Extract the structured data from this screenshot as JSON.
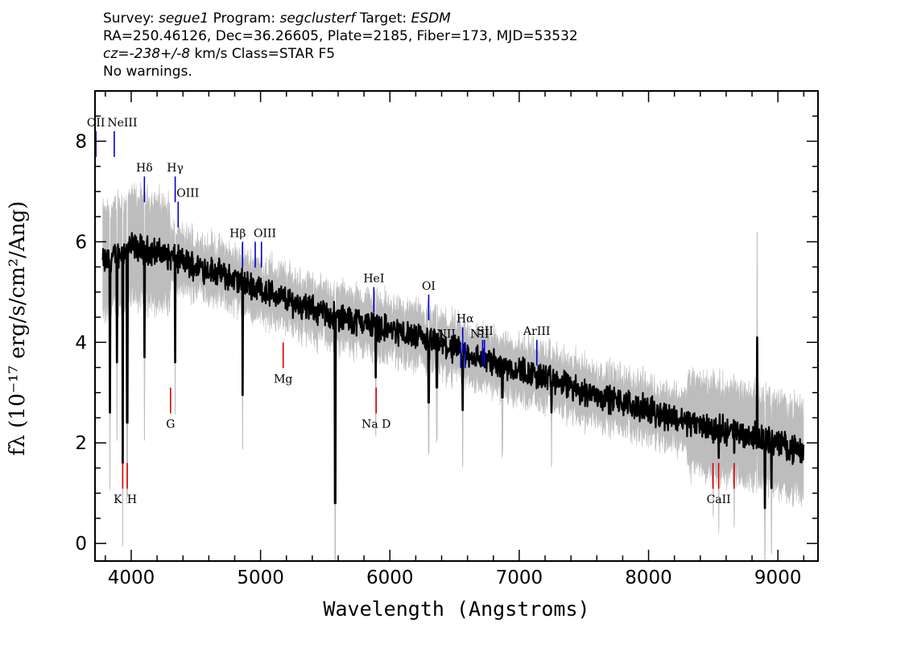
{
  "header": {
    "survey_label": "Survey:",
    "survey": "segue1",
    "program_label": "Program:",
    "program": "segclusterf",
    "target_label": "Target:",
    "target": "ESDM",
    "line2": "RA=250.46126, Dec=36.26605, Plate=2185, Fiber=173, MJD=53532",
    "cz_label": "cz=",
    "cz": "-238+/-8",
    "cz_unit": "km/s",
    "class": "Class=STAR F5",
    "warnings": "No warnings."
  },
  "chart_data": {
    "type": "line",
    "xlabel": "Wavelength (Angstroms)",
    "ylabel": "fλ (10⁻¹⁷ erg/s/cm²/Ang)",
    "xlim": [
      3720,
      9310
    ],
    "ylim": [
      -0.35,
      9.0
    ],
    "xticks": [
      4000,
      5000,
      6000,
      7000,
      8000,
      9000
    ],
    "yticks": [
      0,
      2,
      4,
      6,
      8
    ],
    "colors": {
      "flux": "#000000",
      "error_band": "#bdbdbd",
      "emission": "#0000cc",
      "absorption": "#dd0000"
    },
    "continuum": [
      [
        3800,
        5.6
      ],
      [
        4000,
        5.9
      ],
      [
        4200,
        5.8
      ],
      [
        4400,
        5.6
      ],
      [
        4600,
        5.45
      ],
      [
        4800,
        5.25
      ],
      [
        5000,
        5.05
      ],
      [
        5200,
        4.85
      ],
      [
        5400,
        4.65
      ],
      [
        5600,
        4.5
      ],
      [
        5800,
        4.4
      ],
      [
        6000,
        4.25
      ],
      [
        6200,
        4.1
      ],
      [
        6400,
        3.95
      ],
      [
        6600,
        3.75
      ],
      [
        6800,
        3.6
      ],
      [
        7000,
        3.45
      ],
      [
        7200,
        3.3
      ],
      [
        7400,
        3.1
      ],
      [
        7600,
        2.95
      ],
      [
        7800,
        2.8
      ],
      [
        8000,
        2.65
      ],
      [
        8200,
        2.5
      ],
      [
        8400,
        2.35
      ],
      [
        8600,
        2.25
      ],
      [
        8800,
        2.15
      ],
      [
        9000,
        2.0
      ],
      [
        9200,
        1.8
      ]
    ],
    "absorption_dips": [
      [
        3835,
        2.6
      ],
      [
        3890,
        3.6
      ],
      [
        3934,
        1.6
      ],
      [
        3969,
        2.4
      ],
      [
        4102,
        3.7
      ],
      [
        4340,
        3.6
      ],
      [
        4861,
        2.95
      ],
      [
        5577,
        0.8
      ],
      [
        5890,
        3.3
      ],
      [
        6300,
        2.8
      ],
      [
        6363,
        3.1
      ],
      [
        6563,
        2.65
      ],
      [
        6870,
        2.9
      ],
      [
        7250,
        2.6
      ],
      [
        8500,
        2.0
      ],
      [
        8542,
        1.7
      ],
      [
        8662,
        1.8
      ],
      [
        8900,
        0.7
      ],
      [
        8950,
        1.1
      ]
    ],
    "spikes": [
      [
        8840,
        4.1
      ]
    ],
    "emission_lines": [
      {
        "label": "OII",
        "x": 3727,
        "y": 8.2
      },
      {
        "label": "NeIII",
        "x": 3869,
        "y": 8.2
      },
      {
        "label": "Hδ",
        "x": 4102,
        "y": 7.3
      },
      {
        "label": "Hγ",
        "x": 4340,
        "y": 7.3
      },
      {
        "label": "OIII",
        "x": 4363,
        "y": 6.8
      },
      {
        "label": "Hβ",
        "x": 4861,
        "y": 6.0
      },
      {
        "label": "OIII",
        "x": 4959,
        "y": 6.0
      },
      {
        "label": "OIII",
        "x": 5007,
        "y": 6.0
      },
      {
        "label": "HeI",
        "x": 5876,
        "y": 5.1
      },
      {
        "label": "OI",
        "x": 6300,
        "y": 4.95
      },
      {
        "label": "NII",
        "x": 6548,
        "y": 4.0
      },
      {
        "label": "Hα",
        "x": 6563,
        "y": 4.3
      },
      {
        "label": "NII",
        "x": 6583,
        "y": 4.0
      },
      {
        "label": "SII",
        "x": 6717,
        "y": 4.05
      },
      {
        "label": "SII",
        "x": 6731,
        "y": 4.05
      },
      {
        "label": "ArIII",
        "x": 7136,
        "y": 4.05
      }
    ],
    "absorption_lines": [
      {
        "label": "K",
        "x": 3934,
        "y": 1.6
      },
      {
        "label": "H",
        "x": 3969,
        "y": 1.6
      },
      {
        "label": "G",
        "x": 4304,
        "y": 3.1
      },
      {
        "label": "Mg",
        "x": 5175,
        "y": 4.0
      },
      {
        "label": "Na D",
        "x": 5894,
        "y": 3.1
      },
      {
        "label": "CaII",
        "x": 8498,
        "y": 1.6
      },
      {
        "label": "CaII",
        "x": 8542,
        "y": 1.6
      },
      {
        "label": "CaII",
        "x": 8662,
        "y": 1.6
      }
    ]
  }
}
